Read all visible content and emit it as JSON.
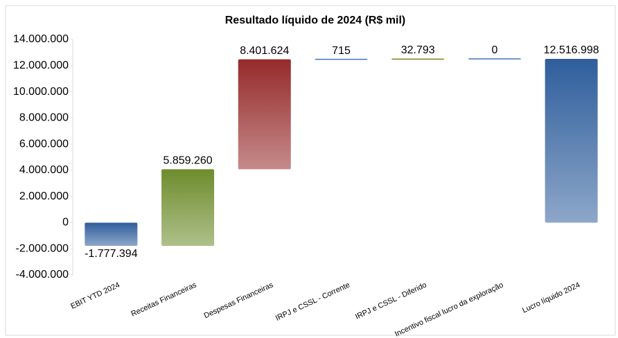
{
  "chart_data": {
    "type": "waterfall",
    "title": "Resultado líquido de 2024 (R$ mil)",
    "categories": [
      "EBIT YTD 2024",
      "Receitas Financeiras",
      "Despesas Financeiras",
      "IRPJ e CSSL - Corrente",
      "IRPJ e CSSL - Diferido",
      "Incentivo fiscal lucro da exploração",
      "Lucro líquido 2024"
    ],
    "values": [
      -1777394,
      5859260,
      8401624,
      715,
      32793,
      0,
      12516998
    ],
    "value_labels": [
      "-1.777.394",
      "5.859.260",
      "8.401.624",
      "715",
      "32.793",
      "0",
      "12.516.998"
    ],
    "measure": [
      "relative",
      "relative",
      "relative",
      "relative",
      "relative",
      "relative",
      "total"
    ],
    "colors": [
      "#2f5e9c",
      "#6d8c2c",
      "#962a2a",
      "#3f74b4",
      "#7f7f22",
      "#3f74b4",
      "#2f5e9c"
    ],
    "ylim": [
      -4000000,
      14000000
    ],
    "yticks": [
      {
        "value": -4000000,
        "label": "-4.000.000"
      },
      {
        "value": -2000000,
        "label": "-2.000.000"
      },
      0,
      {
        "value": 2000000,
        "label": "2.000.000"
      },
      {
        "value": 4000000,
        "label": "4.000.000"
      },
      {
        "value": 6000000,
        "label": "6.000.000"
      },
      {
        "value": 8000000,
        "label": "8.000.000"
      },
      {
        "value": 10000000,
        "label": "10.000.000"
      },
      {
        "value": 12000000,
        "label": "12.000.000"
      },
      {
        "value": 14000000,
        "label": "14.000.000"
      }
    ],
    "grid": false
  }
}
